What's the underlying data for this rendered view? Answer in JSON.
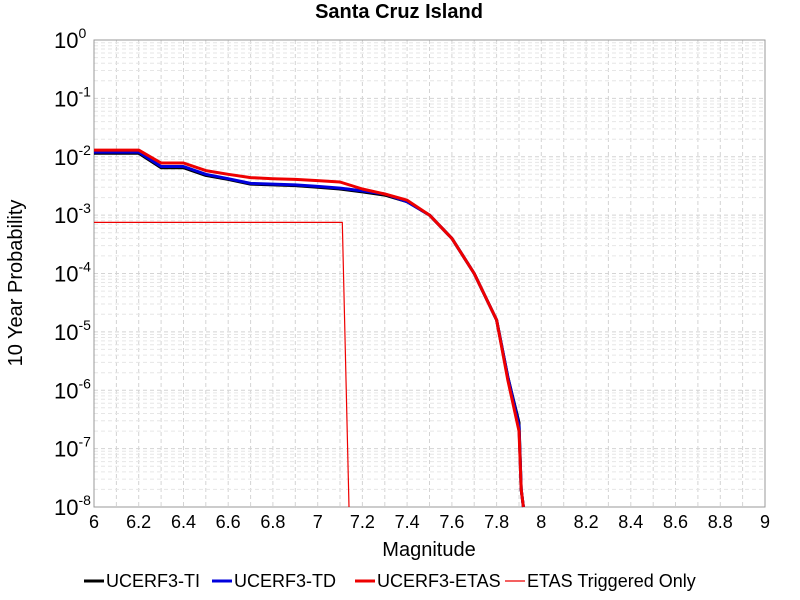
{
  "chart_data": {
    "type": "line",
    "title": "Santa Cruz Island",
    "xlabel": "Magnitude",
    "ylabel": "10 Year Probability",
    "xlim": [
      6,
      9
    ],
    "ylim": [
      1e-08,
      1
    ],
    "yscale": "log",
    "grid": true,
    "legend_position": "bottom",
    "x_ticks": [
      "6",
      "6.2",
      "6.4",
      "6.6",
      "6.8",
      "7",
      "7.2",
      "7.4",
      "7.6",
      "7.8",
      "8",
      "8.2",
      "8.4",
      "8.6",
      "8.8",
      "9"
    ],
    "y_tick_base": "10",
    "y_tick_exponents": [
      "0",
      "-1",
      "-2",
      "-3",
      "-4",
      "-5",
      "-6",
      "-7",
      "-8"
    ],
    "series": [
      {
        "name": "UCERF3-TI",
        "color": "#000000",
        "x": [
          6.0,
          6.1,
          6.2,
          6.3,
          6.4,
          6.5,
          6.6,
          6.7,
          6.8,
          6.9,
          7.0,
          7.1,
          7.2,
          7.3,
          7.4,
          7.5,
          7.6,
          7.7,
          7.8,
          7.85,
          7.9,
          7.91,
          7.92
        ],
        "y": [
          0.0115,
          0.0115,
          0.0115,
          0.0065,
          0.0065,
          0.0048,
          0.0041,
          0.0034,
          0.0033,
          0.0032,
          0.003,
          0.0028,
          0.0025,
          0.0022,
          0.0017,
          0.001,
          0.0004,
          0.0001,
          1.6e-05,
          1.7e-06,
          2.8e-07,
          2e-08,
          1e-08
        ]
      },
      {
        "name": "UCERF3-TD",
        "color": "#0000dd",
        "x": [
          6.0,
          6.1,
          6.2,
          6.3,
          6.4,
          6.5,
          6.6,
          6.7,
          6.8,
          6.9,
          7.0,
          7.1,
          7.2,
          7.3,
          7.4,
          7.5,
          7.6,
          7.7,
          7.8,
          7.85,
          7.9,
          7.91,
          7.92
        ],
        "y": [
          0.012,
          0.012,
          0.012,
          0.0068,
          0.0068,
          0.005,
          0.0042,
          0.0035,
          0.0034,
          0.0033,
          0.0031,
          0.0029,
          0.0026,
          0.0023,
          0.0017,
          0.001,
          0.0004,
          0.0001,
          1.6e-05,
          1.7e-06,
          2.5e-07,
          2e-08,
          1e-08
        ]
      },
      {
        "name": "UCERF3-ETAS",
        "color": "#ee0000",
        "x": [
          6.0,
          6.1,
          6.2,
          6.3,
          6.4,
          6.5,
          6.6,
          6.7,
          6.8,
          6.9,
          7.0,
          7.1,
          7.2,
          7.3,
          7.4,
          7.5,
          7.6,
          7.7,
          7.8,
          7.85,
          7.9,
          7.91,
          7.92
        ],
        "y": [
          0.013,
          0.013,
          0.013,
          0.0078,
          0.0078,
          0.0058,
          0.005,
          0.0044,
          0.0042,
          0.0041,
          0.0039,
          0.0037,
          0.0028,
          0.0023,
          0.0018,
          0.001,
          0.0004,
          0.0001,
          1.6e-05,
          1.5e-06,
          2e-07,
          2e-08,
          1e-08
        ]
      },
      {
        "name": "ETAS Triggered Only",
        "color": "#ee0000",
        "thin": true,
        "x": [
          6.0,
          7.11,
          7.14
        ],
        "y": [
          0.00075,
          0.00075,
          1e-08
        ]
      }
    ]
  }
}
